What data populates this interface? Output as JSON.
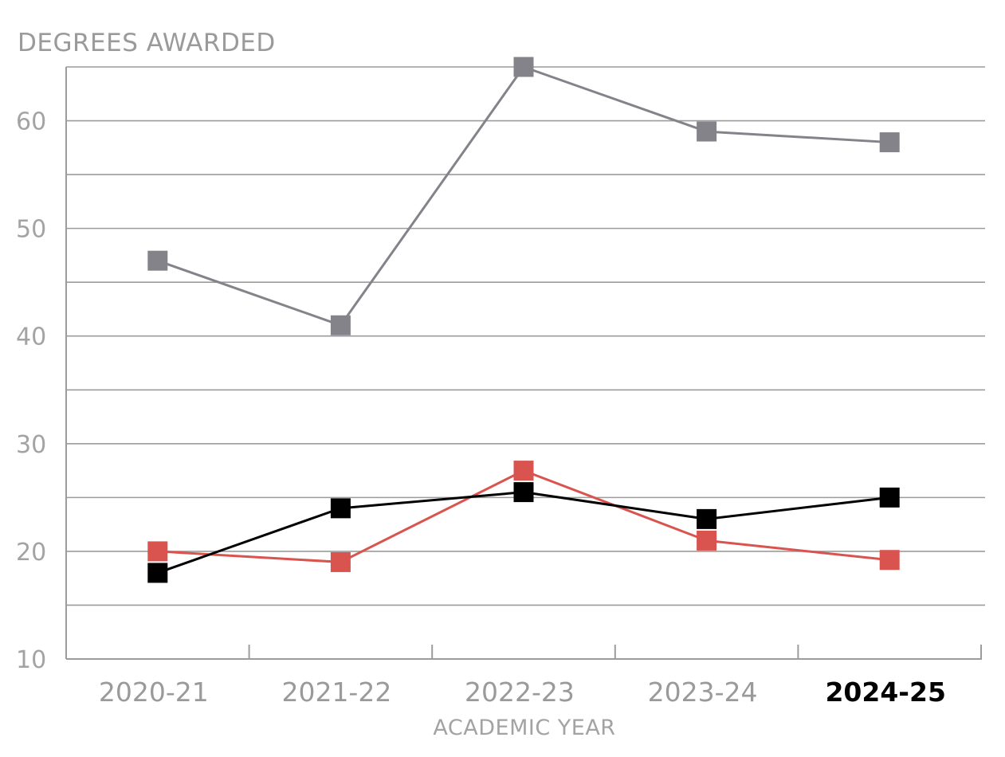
{
  "chart_data": {
    "type": "line",
    "title": "",
    "ylabel": "DEGREES AWARDED",
    "xlabel": "ACADEMIC YEAR",
    "categories": [
      "2020-21",
      "2021-22",
      "2022-23",
      "2023-24",
      "2024-25"
    ],
    "highlight_category": "2024-25",
    "ylim": [
      10,
      65
    ],
    "yticks": [
      10,
      20,
      30,
      40,
      50,
      60
    ],
    "grid": true,
    "legend": "none",
    "series": [
      {
        "values": [
          47,
          41,
          65,
          59,
          58
        ],
        "color": "#85838a"
      },
      {
        "values": [
          20,
          19,
          27.5,
          21,
          19.2
        ],
        "color": "#d9534f"
      },
      {
        "values": [
          18,
          24,
          25.5,
          23,
          25
        ],
        "color": "#000000"
      }
    ]
  }
}
